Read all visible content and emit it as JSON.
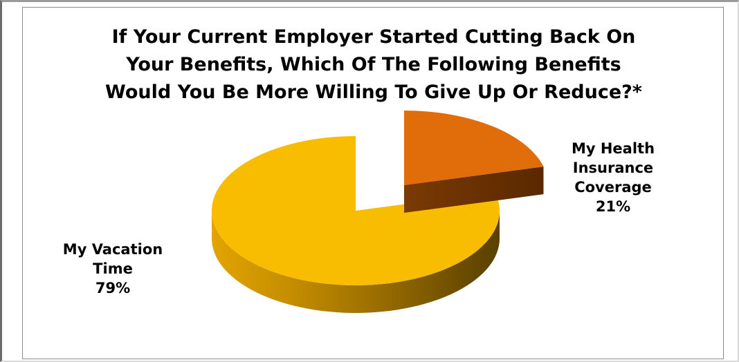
{
  "chart_data": {
    "type": "pie",
    "title": "If Your Current Employer Started Cutting Back On Your Benefits, Which Of The Following Benefits Would You Be More Willing To Give Up Or Reduce?*",
    "title_lines": [
      "If Your Current Employer Started Cutting Back On",
      "Your Benefits, Which Of The Following Benefits",
      "Would You Be More Willing To Give Up Or Reduce?*"
    ],
    "slices": [
      {
        "label": "My Health Insurance Coverage",
        "label_lines": [
          "My Health",
          "Insurance",
          "Coverage"
        ],
        "value": 21,
        "value_label": "21%",
        "color": "#E06C0A",
        "exploded": true
      },
      {
        "label": "My Vacation Time",
        "label_lines": [
          "My Vacation",
          "Time"
        ],
        "value": 79,
        "value_label": "79%",
        "color": "#F8BC00",
        "exploded": false
      }
    ],
    "style": "3d-pie",
    "legend": "none"
  }
}
